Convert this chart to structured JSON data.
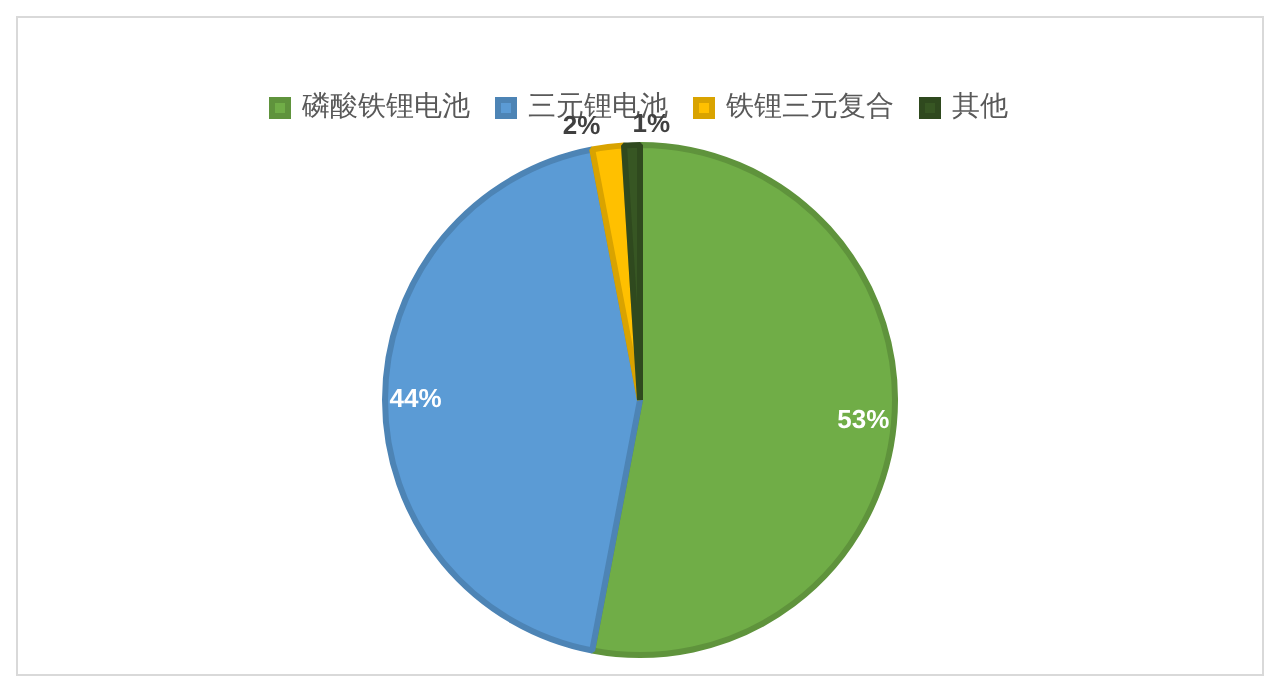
{
  "chart_data": {
    "type": "pie",
    "categories": [
      "磷酸铁锂电池",
      "三元锂电池",
      "铁锂三元复合",
      "其他"
    ],
    "values": [
      53,
      44,
      2,
      1
    ],
    "colors": [
      "#70ad47",
      "#5b9bd5",
      "#ffc000",
      "#375623"
    ],
    "value_labels": [
      "53%",
      "44%",
      "2%",
      "1%"
    ],
    "legend": "top"
  }
}
